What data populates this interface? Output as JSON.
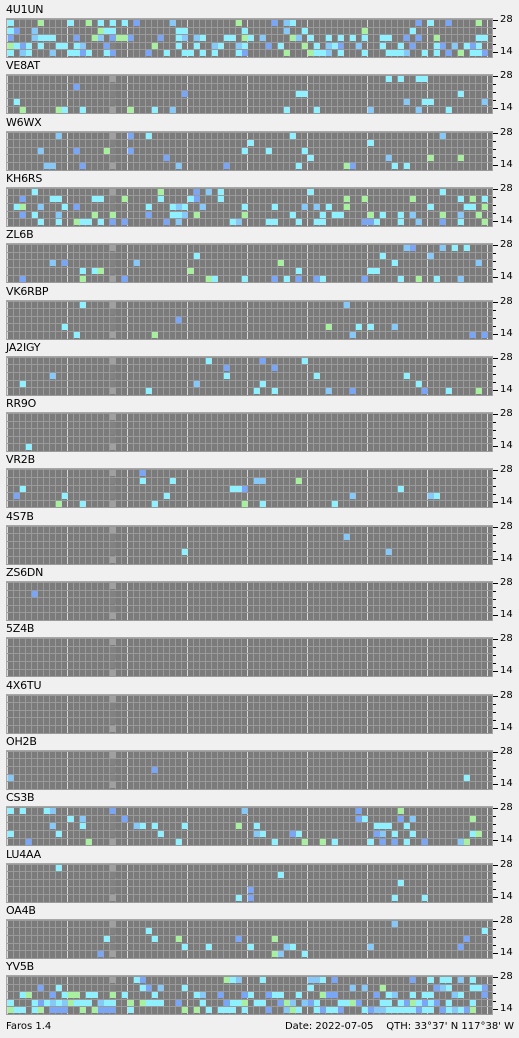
{
  "app": {
    "name": "Faros 1.4"
  },
  "status": {
    "date_label": "Date:",
    "date": "2022-07-05",
    "qth_label": "QTH:",
    "qth": "33°37' N  117°38' W"
  },
  "axis": {
    "top_label": "28",
    "bottom_label": "14"
  },
  "colors": {
    "grid_bg": "#7b7b7b",
    "cell_off": "#8c8c8c",
    "marker": "#a0a0a0",
    "cyan": "#8ff0ff",
    "light_blue": "#86c8f8",
    "blue": "#7ba5f5",
    "violet": "#7a78e0",
    "green": "#a8f0a0"
  },
  "stations": [
    {
      "name": "4U1UN"
    },
    {
      "name": "VE8AT"
    },
    {
      "name": "W6WX"
    },
    {
      "name": "KH6RS"
    },
    {
      "name": "ZL6B"
    },
    {
      "name": "VK6RBP"
    },
    {
      "name": "JA2IGY"
    },
    {
      "name": "RR9O"
    },
    {
      "name": "VR2B"
    },
    {
      "name": "4S7B"
    },
    {
      "name": "ZS6DN"
    },
    {
      "name": "5Z4B"
    },
    {
      "name": "4X6TU"
    },
    {
      "name": "OH2B"
    },
    {
      "name": "CS3B"
    },
    {
      "name": "LU4AA"
    },
    {
      "name": "OA4B"
    },
    {
      "name": "YV5B"
    }
  ]
}
